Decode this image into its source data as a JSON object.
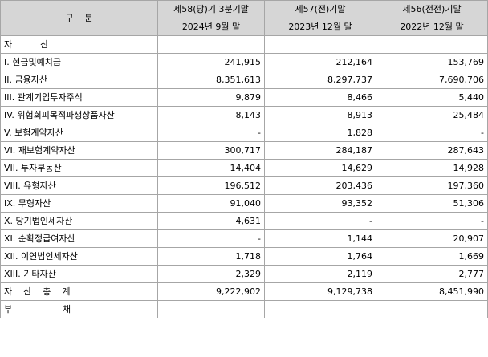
{
  "header": {
    "category_label": "구    분",
    "columns": [
      {
        "period": "제58(당)기 3분기말",
        "date": "2024년 9월 말"
      },
      {
        "period": "제57(전)기말",
        "date": "2023년 12월 말"
      },
      {
        "period": "제56(전전)기말",
        "date": "2022년 12월 말"
      }
    ]
  },
  "sections": {
    "assets_title": "자          산",
    "total_assets": {
      "label": "자    산    총    계",
      "values": [
        "9,222,902",
        "9,129,738",
        "8,451,990"
      ]
    },
    "liabilities_title": "부                  채"
  },
  "rows": [
    {
      "label": "I. 현금및예치금",
      "values": [
        "241,915",
        "212,164",
        "153,769"
      ]
    },
    {
      "label": "II. 금융자산",
      "values": [
        "8,351,613",
        "8,297,737",
        "7,690,706"
      ]
    },
    {
      "label": "III. 관계기업투자주식",
      "values": [
        "9,879",
        "8,466",
        "5,440"
      ]
    },
    {
      "label": "IV. 위험회피목적파생상품자산",
      "values": [
        "8,143",
        "8,913",
        "25,484"
      ]
    },
    {
      "label": "V. 보험계약자산",
      "values": [
        "-",
        "1,828",
        "-"
      ]
    },
    {
      "label": "VI. 재보험계약자산",
      "values": [
        "300,717",
        "284,187",
        "287,643"
      ]
    },
    {
      "label": "VII. 투자부동산",
      "values": [
        "14,404",
        "14,629",
        "14,928"
      ]
    },
    {
      "label": "VIII. 유형자산",
      "values": [
        "196,512",
        "203,436",
        "197,360"
      ]
    },
    {
      "label": "IX. 무형자산",
      "values": [
        "91,040",
        "93,352",
        "51,306"
      ]
    },
    {
      "label": "X. 당기법인세자산",
      "values": [
        "4,631",
        "-",
        "-"
      ]
    },
    {
      "label": "XI. 순확정급여자산",
      "values": [
        "-",
        "1,144",
        "20,907"
      ]
    },
    {
      "label": "XII. 이연법인세자산",
      "values": [
        "1,718",
        "1,764",
        "1,669"
      ]
    },
    {
      "label": "XIII. 기타자산",
      "values": [
        "2,329",
        "2,119",
        "2,777"
      ]
    }
  ]
}
